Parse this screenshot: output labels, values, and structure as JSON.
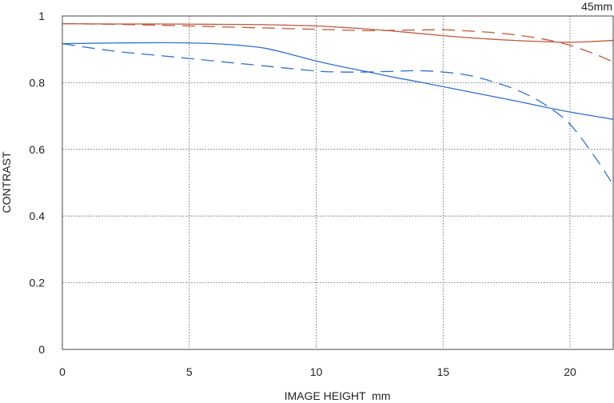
{
  "chart_data": {
    "type": "line",
    "title": "45mm",
    "xlabel": "IMAGE HEIGHT  mm",
    "ylabel": "CONTRAST",
    "xlim": [
      0,
      21.7
    ],
    "ylim": [
      0,
      1
    ],
    "xticks": [
      0,
      5,
      10,
      15,
      20
    ],
    "yticks": [
      0,
      0.2,
      0.4,
      0.6,
      0.8,
      1
    ],
    "xtick_labels": [
      "0",
      "5",
      "10",
      "15",
      "20"
    ],
    "ytick_labels": [
      "0",
      "0.2",
      "0.4",
      "0.6",
      "0.8",
      "1"
    ],
    "grid": true,
    "series": [
      {
        "color": "#c0583a",
        "style": "solid",
        "x": [
          0,
          2,
          4,
          6,
          8,
          10,
          11,
          12,
          13,
          14,
          15,
          16,
          17,
          18,
          19,
          20,
          21,
          21.7
        ],
        "y": [
          0.977,
          0.976,
          0.976,
          0.975,
          0.974,
          0.97,
          0.966,
          0.961,
          0.955,
          0.948,
          0.941,
          0.935,
          0.93,
          0.926,
          0.923,
          0.921,
          0.924,
          0.927
        ]
      },
      {
        "color": "#c0583a",
        "style": "dashed",
        "x": [
          0,
          2,
          4,
          6,
          8,
          10,
          11,
          12,
          13,
          14,
          15,
          16,
          17,
          18,
          19,
          20,
          21,
          21.7
        ],
        "y": [
          0.977,
          0.975,
          0.972,
          0.968,
          0.964,
          0.96,
          0.958,
          0.956,
          0.957,
          0.958,
          0.959,
          0.955,
          0.95,
          0.942,
          0.93,
          0.912,
          0.885,
          0.862
        ]
      },
      {
        "color": "#2f6fd0",
        "style": "solid",
        "x": [
          0,
          2,
          4,
          5,
          6,
          7,
          8,
          9,
          10,
          11,
          12,
          13,
          14,
          15,
          16,
          17,
          18,
          19,
          20,
          21,
          21.7
        ],
        "y": [
          0.917,
          0.919,
          0.92,
          0.919,
          0.917,
          0.912,
          0.903,
          0.885,
          0.865,
          0.848,
          0.833,
          0.817,
          0.803,
          0.788,
          0.773,
          0.758,
          0.743,
          0.727,
          0.712,
          0.699,
          0.69
        ]
      },
      {
        "color": "#2f6fd0",
        "style": "dashed",
        "x": [
          0,
          2,
          4,
          6,
          8,
          10,
          11,
          12,
          13,
          14,
          15,
          16,
          17,
          18,
          19,
          20,
          21,
          21.7
        ],
        "y": [
          0.917,
          0.895,
          0.88,
          0.865,
          0.85,
          0.835,
          0.832,
          0.832,
          0.834,
          0.836,
          0.832,
          0.822,
          0.802,
          0.775,
          0.735,
          0.675,
          0.575,
          0.493
        ]
      }
    ]
  }
}
